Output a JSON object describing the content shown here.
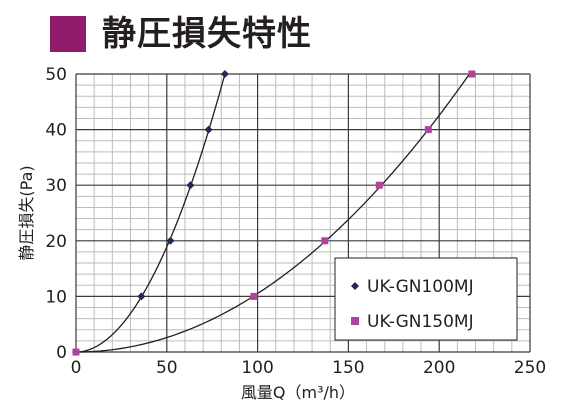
{
  "title": "静圧損失特性",
  "colors": {
    "accent": "#8e1b6b",
    "series1": "#1f2a5a",
    "series2": "#b0449a",
    "grid": "#999999",
    "curve": "#231f20"
  },
  "chart_data": {
    "type": "line",
    "xlabel": "風量Q（m³/h）",
    "ylabel": "静圧損失(Pa)",
    "xlim": [
      0,
      250
    ],
    "ylim": [
      0,
      50
    ],
    "xticks": [
      "0",
      "50",
      "100",
      "150",
      "200",
      "250"
    ],
    "yticks": [
      "0",
      "10",
      "20",
      "30",
      "40",
      "50"
    ],
    "grid": true,
    "legend_position": "bottom-right",
    "series": [
      {
        "name": "UK-GN100MJ",
        "marker": "diamond",
        "x": [
          0,
          36,
          52,
          63,
          73,
          82
        ],
        "y": [
          0,
          10,
          20,
          30,
          40,
          50
        ]
      },
      {
        "name": "UK-GN150MJ",
        "marker": "square",
        "x": [
          0,
          98,
          137,
          167,
          194,
          218
        ],
        "y": [
          0,
          10,
          20,
          30,
          40,
          50
        ]
      }
    ]
  }
}
